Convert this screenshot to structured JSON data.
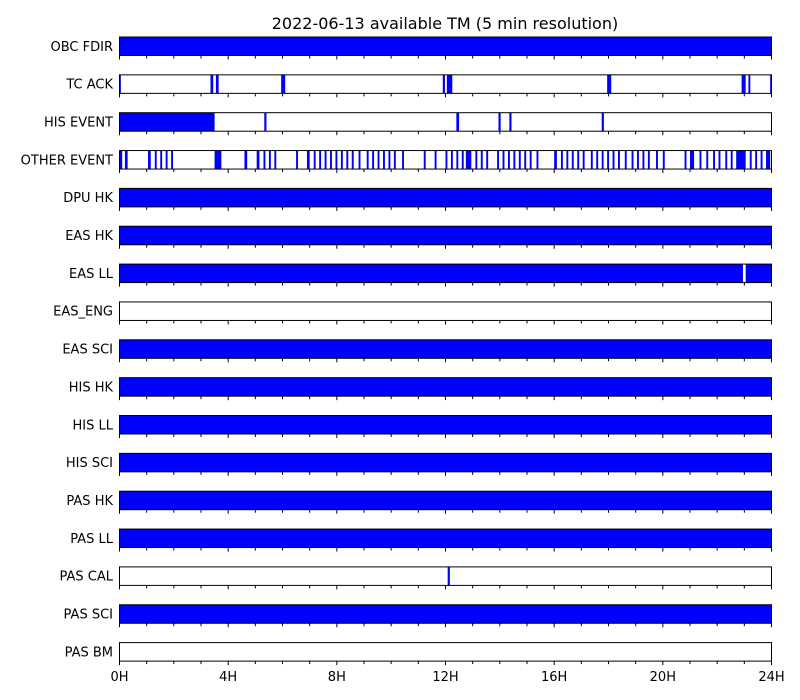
{
  "chart_data": {
    "type": "timeline-availability",
    "title": "2022-06-13 available TM (5 min resolution)",
    "x_unit": "hours",
    "x_range": [
      0,
      24
    ],
    "x_tick_labels": [
      "0H",
      "4H",
      "8H",
      "12H",
      "16H",
      "20H",
      "24H"
    ],
    "x_tick_values": [
      0,
      4,
      8,
      12,
      16,
      20,
      24
    ],
    "x_minor_step_hours": 1,
    "fill_color": "#0000ff",
    "rows": [
      {
        "name": "OBC FDIR",
        "intervals": [
          [
            0,
            24
          ]
        ]
      },
      {
        "name": "TC ACK",
        "intervals": [
          [
            0.0,
            0.05
          ],
          [
            3.35,
            3.45
          ],
          [
            3.55,
            3.65
          ],
          [
            5.95,
            6.1
          ],
          [
            11.9,
            11.98
          ],
          [
            12.05,
            12.25
          ],
          [
            17.95,
            18.1
          ],
          [
            22.9,
            23.05
          ],
          [
            23.15,
            23.22
          ],
          [
            23.95,
            24.0
          ]
        ]
      },
      {
        "name": "HIS EVENT",
        "intervals": [
          [
            0,
            3.5
          ],
          [
            5.33,
            5.41
          ],
          [
            12.4,
            12.5
          ],
          [
            13.95,
            14.03
          ],
          [
            14.35,
            14.43
          ],
          [
            17.75,
            17.83
          ]
        ]
      },
      {
        "name": "OTHER EVENT",
        "intervals": [
          [
            0.0,
            0.1
          ],
          [
            0.2,
            0.3
          ],
          [
            1.05,
            1.15
          ],
          [
            1.3,
            1.37
          ],
          [
            1.5,
            1.57
          ],
          [
            1.7,
            1.77
          ],
          [
            1.9,
            1.97
          ],
          [
            3.5,
            3.75
          ],
          [
            4.6,
            4.7
          ],
          [
            5.05,
            5.15
          ],
          [
            5.3,
            5.37
          ],
          [
            5.5,
            5.57
          ],
          [
            5.7,
            5.77
          ],
          [
            6.5,
            6.57
          ],
          [
            6.9,
            7.0
          ],
          [
            7.15,
            7.22
          ],
          [
            7.35,
            7.42
          ],
          [
            7.55,
            7.62
          ],
          [
            7.75,
            7.82
          ],
          [
            7.95,
            8.02
          ],
          [
            8.15,
            8.22
          ],
          [
            8.35,
            8.42
          ],
          [
            8.55,
            8.62
          ],
          [
            8.8,
            8.87
          ],
          [
            9.1,
            9.17
          ],
          [
            9.3,
            9.37
          ],
          [
            9.5,
            9.57
          ],
          [
            9.7,
            9.77
          ],
          [
            9.9,
            9.97
          ],
          [
            10.1,
            10.17
          ],
          [
            10.4,
            10.47
          ],
          [
            11.2,
            11.27
          ],
          [
            11.6,
            11.67
          ],
          [
            12.0,
            12.07
          ],
          [
            12.2,
            12.27
          ],
          [
            12.4,
            12.47
          ],
          [
            12.6,
            12.67
          ],
          [
            12.75,
            12.95
          ],
          [
            13.1,
            13.17
          ],
          [
            13.3,
            13.37
          ],
          [
            13.5,
            13.57
          ],
          [
            13.9,
            13.97
          ],
          [
            14.1,
            14.17
          ],
          [
            14.3,
            14.37
          ],
          [
            14.5,
            14.57
          ],
          [
            14.7,
            14.77
          ],
          [
            14.9,
            14.97
          ],
          [
            15.1,
            15.17
          ],
          [
            15.35,
            15.42
          ],
          [
            16.0,
            16.1
          ],
          [
            16.25,
            16.32
          ],
          [
            16.45,
            16.52
          ],
          [
            16.65,
            16.72
          ],
          [
            16.85,
            16.92
          ],
          [
            17.05,
            17.12
          ],
          [
            17.35,
            17.42
          ],
          [
            17.55,
            17.62
          ],
          [
            17.75,
            17.82
          ],
          [
            17.95,
            18.02
          ],
          [
            18.15,
            18.22
          ],
          [
            18.35,
            18.42
          ],
          [
            18.6,
            18.67
          ],
          [
            18.85,
            18.92
          ],
          [
            19.05,
            19.12
          ],
          [
            19.25,
            19.32
          ],
          [
            19.45,
            19.52
          ],
          [
            19.75,
            19.82
          ],
          [
            20.0,
            20.07
          ],
          [
            20.8,
            20.87
          ],
          [
            21.0,
            21.15
          ],
          [
            21.35,
            21.42
          ],
          [
            21.6,
            21.67
          ],
          [
            21.85,
            21.92
          ],
          [
            22.05,
            22.12
          ],
          [
            22.3,
            22.37
          ],
          [
            22.5,
            22.57
          ],
          [
            22.7,
            23.05
          ],
          [
            23.2,
            23.27
          ],
          [
            23.4,
            23.47
          ],
          [
            23.6,
            23.67
          ],
          [
            23.8,
            23.95
          ]
        ]
      },
      {
        "name": "DPU HK",
        "intervals": [
          [
            0,
            24
          ]
        ]
      },
      {
        "name": "EAS HK",
        "intervals": [
          [
            0,
            24
          ]
        ]
      },
      {
        "name": "EAS LL",
        "intervals": [
          [
            0,
            22.95
          ],
          [
            23.05,
            24
          ]
        ]
      },
      {
        "name": "EAS_ENG",
        "intervals": []
      },
      {
        "name": "EAS SCI",
        "intervals": [
          [
            0,
            24
          ]
        ]
      },
      {
        "name": "HIS HK",
        "intervals": [
          [
            0,
            24
          ]
        ]
      },
      {
        "name": "HIS LL",
        "intervals": [
          [
            0,
            24
          ]
        ]
      },
      {
        "name": "HIS SCI",
        "intervals": [
          [
            0,
            24
          ]
        ]
      },
      {
        "name": "PAS HK",
        "intervals": [
          [
            0,
            24
          ]
        ]
      },
      {
        "name": "PAS LL",
        "intervals": [
          [
            0,
            24
          ]
        ]
      },
      {
        "name": "PAS CAL",
        "intervals": [
          [
            12.08,
            12.16
          ]
        ]
      },
      {
        "name": "PAS SCI",
        "intervals": [
          [
            0,
            24
          ]
        ]
      },
      {
        "name": "PAS BM",
        "intervals": []
      }
    ]
  }
}
